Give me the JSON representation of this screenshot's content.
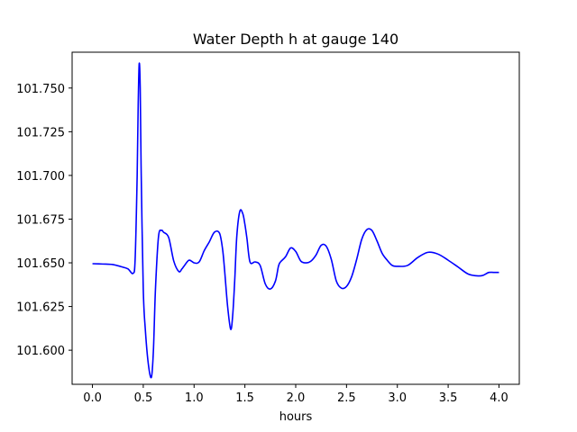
{
  "chart_data": {
    "type": "line",
    "title": "Water Depth h at gauge 140",
    "xlabel": "hours",
    "ylabel": "",
    "xlim": [
      -0.2,
      4.2
    ],
    "ylim": [
      101.5805,
      101.7705
    ],
    "x_ticks": [
      0.0,
      0.5,
      1.0,
      1.5,
      2.0,
      2.5,
      3.0,
      3.5,
      4.0
    ],
    "x_tick_labels": [
      "0.0",
      "0.5",
      "1.0",
      "1.5",
      "2.0",
      "2.5",
      "3.0",
      "3.5",
      "4.0"
    ],
    "y_ticks": [
      101.6,
      101.625,
      101.65,
      101.675,
      101.7,
      101.725,
      101.75
    ],
    "y_tick_labels": [
      "101.600",
      "101.625",
      "101.650",
      "101.675",
      "101.700",
      "101.725",
      "101.750"
    ],
    "grid": false,
    "series": [
      {
        "color": "#0000ff",
        "x": [
          0.0,
          0.1,
          0.2,
          0.3,
          0.35,
          0.4,
          0.42,
          0.44,
          0.45,
          0.46,
          0.47,
          0.48,
          0.5,
          0.52,
          0.55,
          0.58,
          0.6,
          0.62,
          0.65,
          0.68,
          0.7,
          0.75,
          0.8,
          0.85,
          0.88,
          0.9,
          0.95,
          1.0,
          1.05,
          1.1,
          1.15,
          1.2,
          1.25,
          1.28,
          1.3,
          1.33,
          1.36,
          1.38,
          1.4,
          1.42,
          1.45,
          1.48,
          1.5,
          1.52,
          1.55,
          1.6,
          1.65,
          1.7,
          1.75,
          1.8,
          1.83,
          1.85,
          1.9,
          1.95,
          2.0,
          2.05,
          2.1,
          2.15,
          2.2,
          2.25,
          2.3,
          2.35,
          2.4,
          2.45,
          2.5,
          2.55,
          2.6,
          2.65,
          2.7,
          2.75,
          2.8,
          2.85,
          2.9,
          2.95,
          3.0,
          3.1,
          3.2,
          3.3,
          3.4,
          3.5,
          3.6,
          3.7,
          3.8,
          3.85,
          3.9,
          3.95,
          4.0
        ],
        "y": [
          101.6495,
          101.6493,
          101.649,
          101.6475,
          101.6465,
          101.644,
          101.652,
          101.7,
          101.74,
          101.764,
          101.75,
          101.7,
          101.635,
          101.612,
          101.592,
          101.5845,
          101.6,
          101.635,
          101.665,
          101.6685,
          101.6675,
          101.6645,
          101.651,
          101.645,
          101.6465,
          101.648,
          101.6515,
          101.65,
          101.6505,
          101.657,
          101.662,
          101.6675,
          101.667,
          101.658,
          101.646,
          101.625,
          101.612,
          101.62,
          101.64,
          101.665,
          101.6795,
          101.678,
          101.672,
          101.664,
          101.6505,
          101.6505,
          101.6485,
          101.638,
          101.635,
          101.6395,
          101.648,
          101.6505,
          101.6535,
          101.6585,
          101.6565,
          101.651,
          101.65,
          101.651,
          101.6545,
          101.66,
          101.6595,
          101.652,
          101.6395,
          101.6355,
          101.6365,
          101.642,
          101.652,
          101.6635,
          101.669,
          101.6685,
          101.6625,
          101.6555,
          101.6515,
          101.6485,
          101.648,
          101.6485,
          101.653,
          101.656,
          101.655,
          101.6515,
          101.6475,
          101.6435,
          101.6425,
          101.643,
          101.6445,
          101.6445,
          101.6445
        ]
      }
    ]
  }
}
